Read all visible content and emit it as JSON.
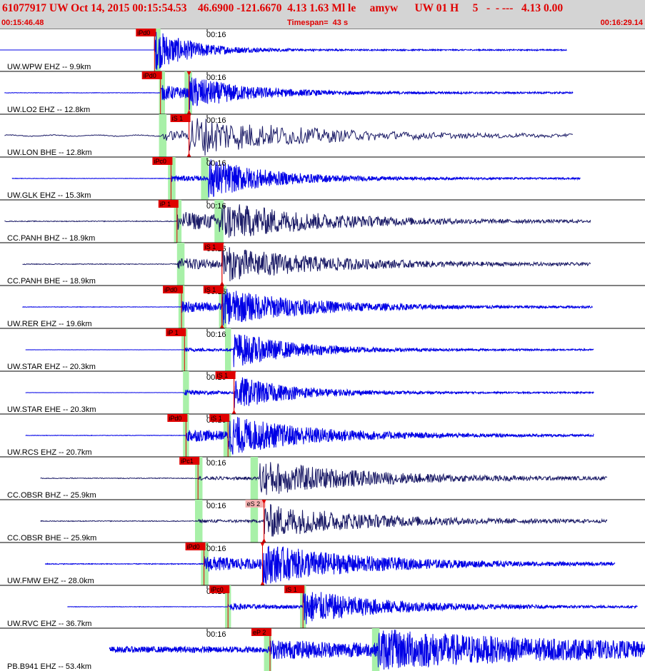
{
  "header": {
    "title": "61077917 UW Oct 14, 2015 00:15:54.53    46.6900 -121.6670  4.13 1.63 Ml le     amyw      UW 01 H     5   -  - ---   4.13 0.00",
    "start_time": "00:15:46.48",
    "timespan": "Timespan=  43 s",
    "end_time": "00:16:29.14"
  },
  "colors": {
    "header_bg": "#d4d4d4",
    "header_text": "#e00000",
    "trace_blue": "#0000e6",
    "trace_navy": "#1a1a66",
    "pick_fill": "#e00000",
    "pick_pale_fill": "#f3b0b0",
    "window_green": "#a8f0a8",
    "time_tick": "#000000",
    "pick_line": "#e00000"
  },
  "chart_data": {
    "type": "seismogram",
    "x_unit": "seconds",
    "xlim": [
      "00:15:46.48",
      "00:16:29.14"
    ],
    "time_marker": "00:16",
    "traces": [
      {
        "label": "UW.WPW EHZ -- 9.9km",
        "color": "trace_blue",
        "data_start": 0.0,
        "data_end": 37.8,
        "onset": 10.3,
        "amp": 1.0,
        "noise": 0.0,
        "decay": 0.25,
        "s_onset": null,
        "s_amp": 0,
        "band": "high",
        "windows": [
          [
            10.3,
            10.7
          ]
        ],
        "picks": [
          {
            "label": "iPd0",
            "t": 10.3,
            "pale": false
          }
        ],
        "markers": []
      },
      {
        "label": "UW.LO2 EHZ -- 12.8km",
        "color": "trace_blue",
        "data_start": 0.3,
        "data_end": 38.2,
        "onset": 10.7,
        "amp": 0.35,
        "noise": 0.01,
        "decay": 0.2,
        "s_onset": 12.6,
        "s_amp": 0.6,
        "band": "high",
        "windows": [
          [
            10.6,
            11.0
          ],
          [
            12.3,
            12.8
          ]
        ],
        "picks": [
          {
            "label": "iPd0",
            "t": 10.7,
            "pale": false
          }
        ],
        "markers": [
          12.6
        ]
      },
      {
        "label": "UW.LON BHE -- 12.8km",
        "color": "trace_navy",
        "data_start": 0.3,
        "data_end": 38.2,
        "onset": 10.7,
        "amp": 0.2,
        "noise": 0.02,
        "decay": 0.12,
        "s_onset": 12.6,
        "s_amp": 0.9,
        "band": "low",
        "windows": [
          [
            10.6,
            11.1
          ]
        ],
        "picks": [
          {
            "label": "iS 1",
            "t": 12.6,
            "pale": false
          }
        ],
        "markers": [
          12.6
        ]
      },
      {
        "label": "UW.GLK EHZ -- 15.3km",
        "color": "trace_blue",
        "data_start": 0.8,
        "data_end": 38.7,
        "onset": 11.4,
        "amp": 0.12,
        "noise": 0.01,
        "decay": 0.2,
        "s_onset": 13.9,
        "s_amp": 0.9,
        "band": "high",
        "windows": [
          [
            11.2,
            11.7
          ],
          [
            13.4,
            13.9
          ]
        ],
        "picks": [
          {
            "label": "iPc0",
            "t": 11.4,
            "pale": false
          }
        ],
        "markers": []
      },
      {
        "label": "CC.PANH BHZ -- 18.9km",
        "color": "trace_navy",
        "data_start": 0.3,
        "data_end": 39.4,
        "onset": 11.8,
        "amp": 0.45,
        "noise": 0.02,
        "decay": 0.12,
        "s_onset": 14.6,
        "s_amp": 0.7,
        "band": "mid",
        "windows": [
          [
            11.6,
            12.1
          ],
          [
            14.3,
            14.9
          ]
        ],
        "picks": [
          {
            "label": "iP 1",
            "t": 11.8,
            "pale": false
          }
        ],
        "markers": []
      },
      {
        "label": "CC.PANH BHE -- 18.9km",
        "color": "trace_navy",
        "data_start": 1.5,
        "data_end": 39.4,
        "onset": 11.8,
        "amp": 0.25,
        "noise": 0.02,
        "decay": 0.12,
        "s_onset": 14.8,
        "s_amp": 0.7,
        "band": "mid",
        "windows": [
          [
            11.8,
            12.3
          ]
        ],
        "picks": [
          {
            "label": "iS 1",
            "t": 14.8,
            "pale": false
          }
        ],
        "markers": [
          14.8
        ]
      },
      {
        "label": "UW.RER EHZ -- 19.6km",
        "color": "trace_blue",
        "data_start": 1.5,
        "data_end": 39.5,
        "onset": 12.1,
        "amp": 0.25,
        "noise": 0.01,
        "decay": 0.14,
        "s_onset": 14.8,
        "s_amp": 0.75,
        "band": "high",
        "windows": [
          [
            11.9,
            12.3
          ],
          [
            14.6,
            15.1
          ]
        ],
        "picks": [
          {
            "label": "iPd0",
            "t": 12.1,
            "pale": false
          },
          {
            "label": "iS 1",
            "t": 14.8,
            "pale": false
          }
        ],
        "markers": [
          14.8
        ]
      },
      {
        "label": "UW.STAR EHZ -- 20.3km",
        "color": "trace_blue",
        "data_start": 1.7,
        "data_end": 39.6,
        "onset": 12.3,
        "amp": 0.06,
        "noise": 0.005,
        "decay": 0.2,
        "s_onset": 15.5,
        "s_amp": 0.85,
        "band": "high",
        "windows": [
          [
            12.1,
            12.5
          ],
          [
            15.0,
            15.4
          ]
        ],
        "picks": [
          {
            "label": "iP 1",
            "t": 12.3,
            "pale": false
          }
        ],
        "markers": []
      },
      {
        "label": "UW.STAR EHE -- 20.3km",
        "color": "trace_blue",
        "data_start": 1.7,
        "data_end": 39.6,
        "onset": 12.3,
        "amp": 0.1,
        "noise": 0.005,
        "decay": 0.22,
        "s_onset": 15.6,
        "s_amp": 0.8,
        "band": "high",
        "windows": [
          [
            12.2,
            12.6
          ]
        ],
        "picks": [
          {
            "label": "iS 1",
            "t": 15.6,
            "pale": false
          }
        ],
        "markers": [
          15.6
        ]
      },
      {
        "label": "UW.RCS EHZ -- 20.7km",
        "color": "trace_blue",
        "data_start": 1.7,
        "data_end": 39.6,
        "onset": 12.4,
        "amp": 0.3,
        "noise": 0.01,
        "decay": 0.14,
        "s_onset": 15.2,
        "s_amp": 0.8,
        "band": "high",
        "windows": [
          [
            12.2,
            12.6
          ],
          [
            14.9,
            15.4
          ]
        ],
        "picks": [
          {
            "label": "iPd0",
            "t": 12.4,
            "pale": false
          },
          {
            "label": "iS 1",
            "t": 15.2,
            "pale": false
          }
        ],
        "markers": []
      },
      {
        "label": "CC.OBSR BHZ -- 25.9km",
        "color": "trace_navy",
        "data_start": 2.7,
        "data_end": 40.5,
        "onset": 13.2,
        "amp": 0.04,
        "noise": 0.02,
        "decay": 0.12,
        "s_onset": 17.3,
        "s_amp": 0.85,
        "band": "mid",
        "windows": [
          [
            13.0,
            13.5
          ],
          [
            16.7,
            17.2
          ]
        ],
        "picks": [
          {
            "label": "iPc1",
            "t": 13.2,
            "pale": false
          }
        ],
        "markers": []
      },
      {
        "label": "CC.OBSR BHE -- 25.9km",
        "color": "trace_navy",
        "data_start": 2.7,
        "data_end": 40.5,
        "onset": 13.2,
        "amp": 0.03,
        "noise": 0.02,
        "decay": 0.12,
        "s_onset": 17.6,
        "s_amp": 0.8,
        "band": "mid",
        "windows": [
          [
            13.0,
            13.5
          ],
          [
            16.7,
            17.2
          ]
        ],
        "picks": [
          {
            "label": "eS 2",
            "t": 17.6,
            "pale": true
          }
        ],
        "markers": [
          17.6
        ]
      },
      {
        "label": "UW.FMW EHZ -- 28.0km",
        "color": "trace_blue",
        "data_start": 3.0,
        "data_end": 41.0,
        "onset": 13.6,
        "amp": 0.35,
        "noise": 0.02,
        "decay": 0.12,
        "s_onset": 17.5,
        "s_amp": 0.8,
        "band": "high",
        "windows": [
          [
            13.4,
            13.9
          ]
        ],
        "picks": [
          {
            "label": "iPd0",
            "t": 13.6,
            "pale": false
          }
        ],
        "markers": [
          17.5
        ]
      },
      {
        "label": "UW.RVC EHZ -- 36.7km",
        "color": "trace_blue",
        "data_start": 4.5,
        "data_end": 42.5,
        "onset": 15.2,
        "amp": 0.12,
        "noise": 0.01,
        "decay": 0.15,
        "s_onset": 20.2,
        "s_amp": 0.8,
        "band": "high",
        "windows": [
          [
            15.0,
            15.4
          ],
          [
            20.0,
            20.4
          ]
        ],
        "picks": [
          {
            "label": "iPc0",
            "t": 15.2,
            "pale": false
          },
          {
            "label": "iS 1",
            "t": 20.2,
            "pale": false
          }
        ],
        "markers": []
      },
      {
        "label": "PB.B941 EHZ -- 53.4km",
        "color": "trace_blue",
        "data_start": 7.3,
        "data_end": 43.0,
        "onset": 18.0,
        "amp": 0.3,
        "noise": 0.15,
        "decay": 0.06,
        "s_onset": 25.2,
        "s_amp": 0.7,
        "band": "high",
        "windows": [
          [
            17.6,
            18.1
          ],
          [
            24.8,
            25.3
          ]
        ],
        "picks": [
          {
            "label": "eP 2",
            "t": 18.0,
            "pale": false
          }
        ],
        "markers": []
      }
    ]
  }
}
